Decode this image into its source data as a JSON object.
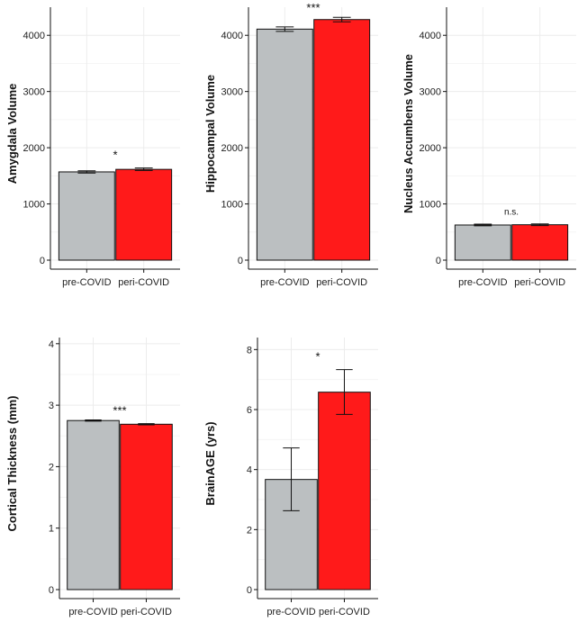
{
  "chart_data": [
    {
      "type": "bar",
      "categories": [
        "pre-COVID",
        "peri-COVID"
      ],
      "values": [
        1570,
        1615
      ],
      "error": [
        [
          1550,
          1590
        ],
        [
          1595,
          1640
        ]
      ],
      "ylabel": "Amygdala Volume",
      "ylim": [
        0,
        4500
      ],
      "yticks": [
        0,
        1000,
        2000,
        3000,
        4000
      ],
      "yticklabels": [
        "0",
        "1000",
        "2000",
        "3000",
        "4000"
      ],
      "significance": "*",
      "colors": [
        "#bbbfc1",
        "#ff1a1a"
      ],
      "grid": true
    },
    {
      "type": "bar",
      "categories": [
        "pre-COVID",
        "peri-COVID"
      ],
      "values": [
        4110,
        4280
      ],
      "error": [
        [
          4070,
          4150
        ],
        [
          4240,
          4320
        ]
      ],
      "ylabel": "Hippocampal Volume",
      "ylim": [
        0,
        4500
      ],
      "yticks": [
        0,
        1000,
        2000,
        3000,
        4000
      ],
      "yticklabels": [
        "0",
        "1000",
        "2000",
        "3000",
        "4000"
      ],
      "significance": "***",
      "colors": [
        "#bbbfc1",
        "#ff1a1a"
      ],
      "grid": true
    },
    {
      "type": "bar",
      "categories": [
        "pre-COVID",
        "peri-COVID"
      ],
      "values": [
        625,
        630
      ],
      "error": [
        [
          610,
          640
        ],
        [
          615,
          645
        ]
      ],
      "ylabel": "Nucleus Accumbens Volume",
      "ylim": [
        0,
        4500
      ],
      "yticks": [
        0,
        1000,
        2000,
        3000,
        4000
      ],
      "yticklabels": [
        "0",
        "1000",
        "2000",
        "3000",
        "4000"
      ],
      "significance": "n.s.",
      "colors": [
        "#bbbfc1",
        "#ff1a1a"
      ],
      "grid": true
    },
    {
      "type": "bar",
      "categories": [
        "pre-COVID",
        "peri-COVID"
      ],
      "values": [
        2.75,
        2.69
      ],
      "error": [
        [
          2.74,
          2.76
        ],
        [
          2.68,
          2.7
        ]
      ],
      "ylabel": "Cortical Thickness (mm)",
      "ylim": [
        0,
        4.1
      ],
      "yticks": [
        0,
        1,
        2,
        3,
        4
      ],
      "yticklabels": [
        "0",
        "1",
        "2",
        "3",
        "4"
      ],
      "significance": "***",
      "colors": [
        "#bbbfc1",
        "#ff1a1a"
      ],
      "grid": true
    },
    {
      "type": "bar",
      "categories": [
        "pre-COVID",
        "peri-COVID"
      ],
      "values": [
        3.67,
        6.58
      ],
      "error": [
        [
          2.63,
          4.72
        ],
        [
          5.84,
          7.33
        ]
      ],
      "ylabel": "BrainAGE (yrs)",
      "ylim": [
        0,
        8.4
      ],
      "yticks": [
        0,
        2,
        4,
        6,
        8
      ],
      "yticklabels": [
        "0",
        "2",
        "4",
        "6",
        "8"
      ],
      "significance": "*",
      "colors": [
        "#bbbfc1",
        "#ff1a1a"
      ],
      "grid": true
    }
  ]
}
